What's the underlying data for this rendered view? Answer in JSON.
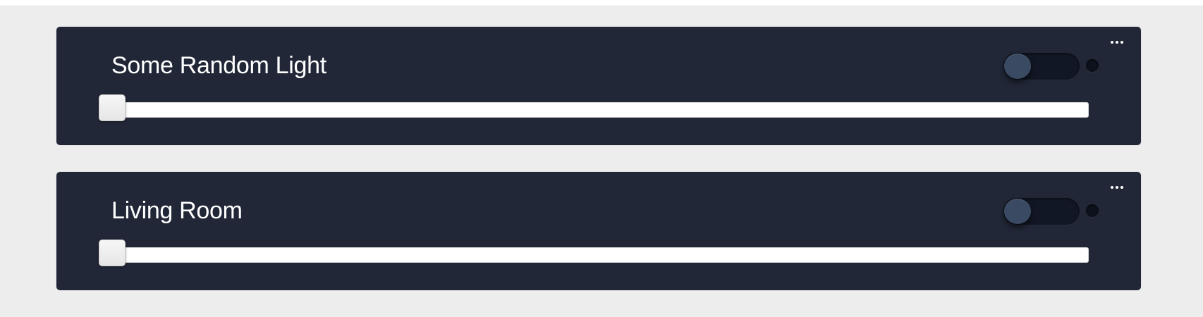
{
  "lights": [
    {
      "name": "Some Random Light",
      "menu_icon": "more-horizontal-icon",
      "power_on": false,
      "brightness": 0,
      "status_indicator": "off"
    },
    {
      "name": "Living Room",
      "menu_icon": "more-horizontal-icon",
      "power_on": false,
      "brightness": 0,
      "status_indicator": "off"
    }
  ],
  "colors": {
    "page_background": "#ededed",
    "card_background": "#212737",
    "toggle_track": "#111724",
    "toggle_knob": "#3a4a63",
    "slider_track": "#ffffff",
    "text": "#ffffff"
  }
}
